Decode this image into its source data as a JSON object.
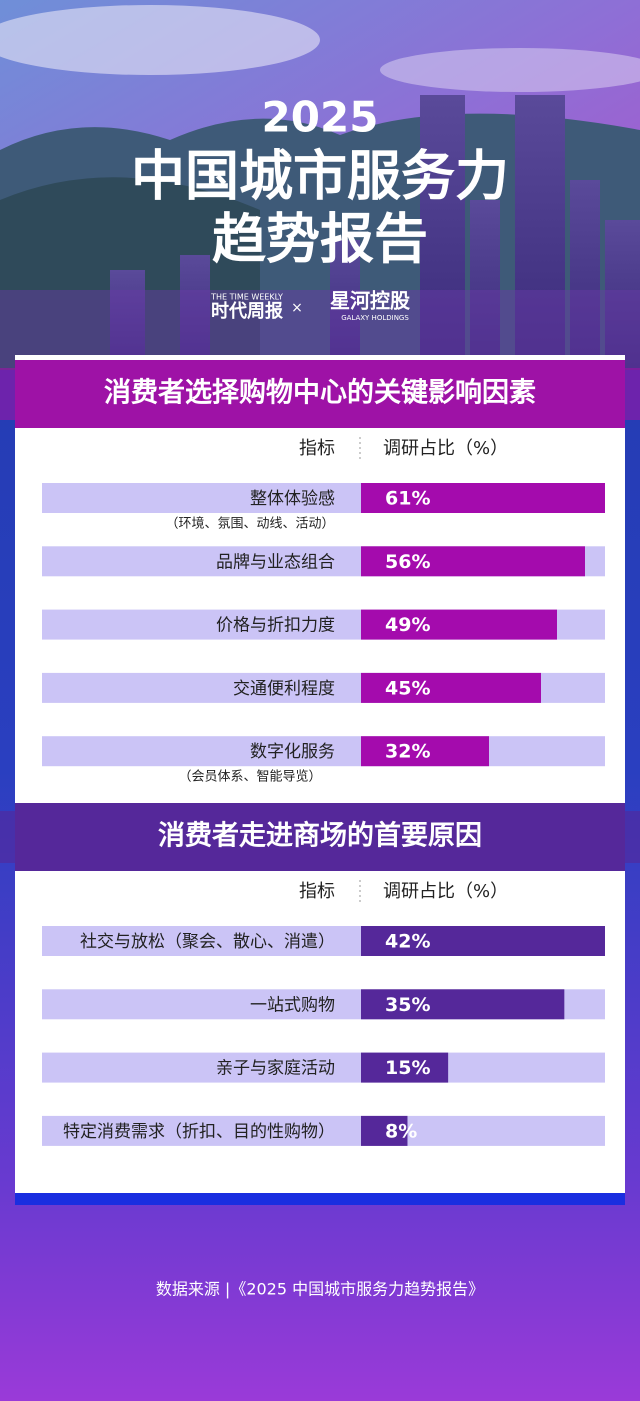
{
  "header": {
    "year": "2025",
    "title_line1": "中国城市服务力",
    "title_line2": "趋势报告",
    "logo1": "时代周报",
    "logo1_en": "THE TIME WEEKLY",
    "separator": "×",
    "logo2": "星河控股",
    "logo2_en": "GALAXY HOLDINGS"
  },
  "chart_data": [
    {
      "type": "bar",
      "title": "消费者选择购物中心的关键影响因素",
      "column_headers": [
        "指标",
        "调研占比（%）"
      ],
      "categories": [
        "整体体验感",
        "品牌与业态组合",
        "价格与折扣力度",
        "交通便利程度",
        "数字化服务"
      ],
      "sublabels": [
        "（环境、氛围、动线、活动）",
        null,
        null,
        null,
        "（会员体系、智能导览）"
      ],
      "values": [
        61,
        56,
        49,
        45,
        32
      ],
      "value_labels": [
        "61%",
        "56%",
        "49%",
        "45%",
        "32%"
      ],
      "color": "#a40bad",
      "title_color": "#9e12a6",
      "xlim": [
        0,
        61
      ]
    },
    {
      "type": "bar",
      "title": "消费者走进商场的首要原因",
      "column_headers": [
        "指标",
        "调研占比（%）"
      ],
      "categories": [
        "社交与放松（聚会、散心、消遣）",
        "一站式购物",
        "亲子与家庭活动",
        "特定消费需求（折扣、目的性购物）"
      ],
      "sublabels": [
        null,
        null,
        null,
        null
      ],
      "values": [
        42,
        35,
        15,
        8
      ],
      "value_labels": [
        "42%",
        "35%",
        "15%",
        "8%"
      ],
      "color": "#55289a",
      "title_color": "#55289a",
      "xlim": [
        0,
        42
      ]
    }
  ],
  "footer": {
    "source": "数据来源 |《2025 中国城市服务力趋势报告》"
  }
}
